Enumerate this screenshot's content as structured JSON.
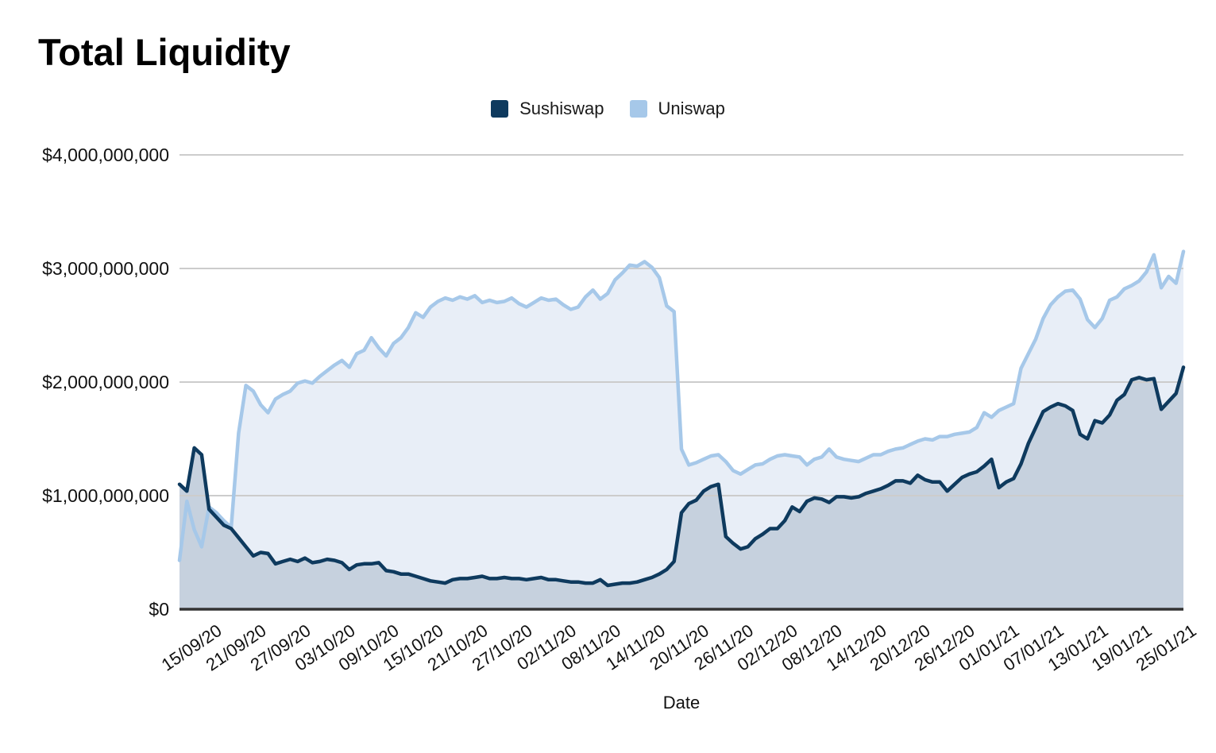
{
  "chart": {
    "title": "Total Liquidity"
  },
  "chart_data": {
    "type": "area",
    "title": "Total Liquidity",
    "xlabel": "Date",
    "ylabel": "",
    "unit": "USD",
    "value_scale": 1000000000,
    "ylim": [
      0,
      4000000000
    ],
    "grid": true,
    "legend_position": "top",
    "gridline_color": "#cccccc",
    "axis_line_color": "#333333",
    "text_color": "#111111",
    "y_tick_labels": [
      "$0",
      "$1,000,000,000",
      "$2,000,000,000",
      "$3,000,000,000",
      "$4,000,000,000"
    ],
    "x_tick_labels": [
      "15/09/20",
      "21/09/20",
      "27/09/20",
      "03/10/20",
      "09/10/20",
      "15/10/20",
      "21/10/20",
      "27/10/20",
      "02/11/20",
      "08/11/20",
      "14/11/20",
      "20/11/20",
      "26/11/20",
      "02/12/20",
      "08/12/20",
      "14/12/20",
      "20/12/20",
      "26/12/20",
      "01/01/21",
      "07/01/21",
      "13/01/21",
      "19/01/21",
      "25/01/21"
    ],
    "x_tick_start_index": 3,
    "x_tick_step": 6,
    "dates": [
      "12/09/20",
      "13/09/20",
      "14/09/20",
      "15/09/20",
      "16/09/20",
      "17/09/20",
      "18/09/20",
      "19/09/20",
      "20/09/20",
      "21/09/20",
      "22/09/20",
      "23/09/20",
      "24/09/20",
      "25/09/20",
      "26/09/20",
      "27/09/20",
      "28/09/20",
      "29/09/20",
      "30/09/20",
      "01/10/20",
      "02/10/20",
      "03/10/20",
      "04/10/20",
      "05/10/20",
      "06/10/20",
      "07/10/20",
      "08/10/20",
      "09/10/20",
      "10/10/20",
      "11/10/20",
      "12/10/20",
      "13/10/20",
      "14/10/20",
      "15/10/20",
      "16/10/20",
      "17/10/20",
      "18/10/20",
      "19/10/20",
      "20/10/20",
      "21/10/20",
      "22/10/20",
      "23/10/20",
      "24/10/20",
      "25/10/20",
      "26/10/20",
      "27/10/20",
      "28/10/20",
      "29/10/20",
      "30/10/20",
      "31/10/20",
      "01/11/20",
      "02/11/20",
      "03/11/20",
      "04/11/20",
      "05/11/20",
      "06/11/20",
      "07/11/20",
      "08/11/20",
      "09/11/20",
      "10/11/20",
      "11/11/20",
      "12/11/20",
      "13/11/20",
      "14/11/20",
      "15/11/20",
      "16/11/20",
      "17/11/20",
      "18/11/20",
      "19/11/20",
      "20/11/20",
      "21/11/20",
      "22/11/20",
      "23/11/20",
      "24/11/20",
      "25/11/20",
      "26/11/20",
      "27/11/20",
      "28/11/20",
      "29/11/20",
      "30/11/20",
      "01/12/20",
      "02/12/20",
      "03/12/20",
      "04/12/20",
      "05/12/20",
      "06/12/20",
      "07/12/20",
      "08/12/20",
      "09/12/20",
      "10/12/20",
      "11/12/20",
      "12/12/20",
      "13/12/20",
      "14/12/20",
      "15/12/20",
      "16/12/20",
      "17/12/20",
      "18/12/20",
      "19/12/20",
      "20/12/20",
      "21/12/20",
      "22/12/20",
      "23/12/20",
      "24/12/20",
      "25/12/20",
      "26/12/20",
      "27/12/20",
      "28/12/20",
      "29/12/20",
      "30/12/20",
      "31/12/20",
      "01/01/21",
      "02/01/21",
      "03/01/21",
      "04/01/21",
      "05/01/21",
      "06/01/21",
      "07/01/21",
      "08/01/21",
      "09/01/21",
      "10/01/21",
      "11/01/21",
      "12/01/21",
      "13/01/21",
      "14/01/21",
      "15/01/21",
      "16/01/21",
      "17/01/21",
      "18/01/21",
      "19/01/21",
      "20/01/21",
      "21/01/21",
      "22/01/21",
      "23/01/21",
      "24/01/21",
      "25/01/21",
      "26/01/21"
    ],
    "series": [
      {
        "name": "Sushiswap",
        "line_color": "#0e3a5e",
        "fill_color": "#c6d1de",
        "values_billions": [
          1.1,
          1.04,
          1.42,
          1.36,
          0.88,
          0.81,
          0.74,
          0.71,
          0.63,
          0.55,
          0.47,
          0.5,
          0.49,
          0.4,
          0.42,
          0.44,
          0.42,
          0.45,
          0.41,
          0.42,
          0.44,
          0.43,
          0.41,
          0.35,
          0.39,
          0.4,
          0.4,
          0.41,
          0.34,
          0.33,
          0.31,
          0.31,
          0.29,
          0.27,
          0.25,
          0.24,
          0.23,
          0.26,
          0.27,
          0.27,
          0.28,
          0.29,
          0.27,
          0.27,
          0.28,
          0.27,
          0.27,
          0.26,
          0.27,
          0.28,
          0.26,
          0.26,
          0.25,
          0.24,
          0.24,
          0.23,
          0.23,
          0.26,
          0.21,
          0.22,
          0.23,
          0.23,
          0.24,
          0.26,
          0.28,
          0.31,
          0.35,
          0.42,
          0.85,
          0.93,
          0.96,
          1.04,
          1.08,
          1.1,
          0.64,
          0.58,
          0.53,
          0.55,
          0.62,
          0.66,
          0.71,
          0.71,
          0.78,
          0.9,
          0.86,
          0.95,
          0.98,
          0.97,
          0.94,
          0.99,
          0.99,
          0.98,
          0.99,
          1.02,
          1.04,
          1.06,
          1.09,
          1.13,
          1.13,
          1.11,
          1.18,
          1.14,
          1.12,
          1.12,
          1.04,
          1.1,
          1.16,
          1.19,
          1.21,
          1.26,
          1.32,
          1.07,
          1.12,
          1.15,
          1.28,
          1.46,
          1.6,
          1.74,
          1.78,
          1.81,
          1.79,
          1.75,
          1.54,
          1.5,
          1.66,
          1.64,
          1.71,
          1.84,
          1.89,
          2.02,
          2.04,
          2.02,
          2.03,
          1.76,
          1.83,
          1.9,
          2.13
        ]
      },
      {
        "name": "Uniswap",
        "line_color": "#a6c8e9",
        "fill_color": "#e8eef7",
        "values_billions": [
          0.43,
          0.95,
          0.7,
          0.55,
          0.9,
          0.85,
          0.78,
          0.72,
          1.55,
          1.97,
          1.92,
          1.8,
          1.73,
          1.85,
          1.89,
          1.92,
          1.99,
          2.01,
          1.99,
          2.05,
          2.1,
          2.15,
          2.19,
          2.13,
          2.25,
          2.28,
          2.39,
          2.3,
          2.23,
          2.34,
          2.39,
          2.48,
          2.61,
          2.57,
          2.66,
          2.71,
          2.74,
          2.72,
          2.75,
          2.73,
          2.76,
          2.7,
          2.72,
          2.7,
          2.71,
          2.74,
          2.69,
          2.66,
          2.7,
          2.74,
          2.72,
          2.73,
          2.68,
          2.64,
          2.66,
          2.75,
          2.81,
          2.73,
          2.78,
          2.9,
          2.96,
          3.03,
          3.02,
          3.06,
          3.01,
          2.92,
          2.67,
          2.62,
          1.41,
          1.27,
          1.29,
          1.32,
          1.35,
          1.36,
          1.3,
          1.22,
          1.19,
          1.23,
          1.27,
          1.28,
          1.32,
          1.35,
          1.36,
          1.35,
          1.34,
          1.27,
          1.32,
          1.34,
          1.41,
          1.34,
          1.32,
          1.31,
          1.3,
          1.33,
          1.36,
          1.36,
          1.39,
          1.41,
          1.42,
          1.45,
          1.48,
          1.5,
          1.49,
          1.52,
          1.52,
          1.54,
          1.55,
          1.56,
          1.6,
          1.73,
          1.69,
          1.75,
          1.78,
          1.81,
          2.12,
          2.25,
          2.38,
          2.56,
          2.68,
          2.75,
          2.8,
          2.81,
          2.73,
          2.55,
          2.48,
          2.56,
          2.72,
          2.75,
          2.82,
          2.85,
          2.89,
          2.97,
          3.12,
          2.83,
          2.93,
          2.87,
          3.15
        ]
      }
    ]
  }
}
